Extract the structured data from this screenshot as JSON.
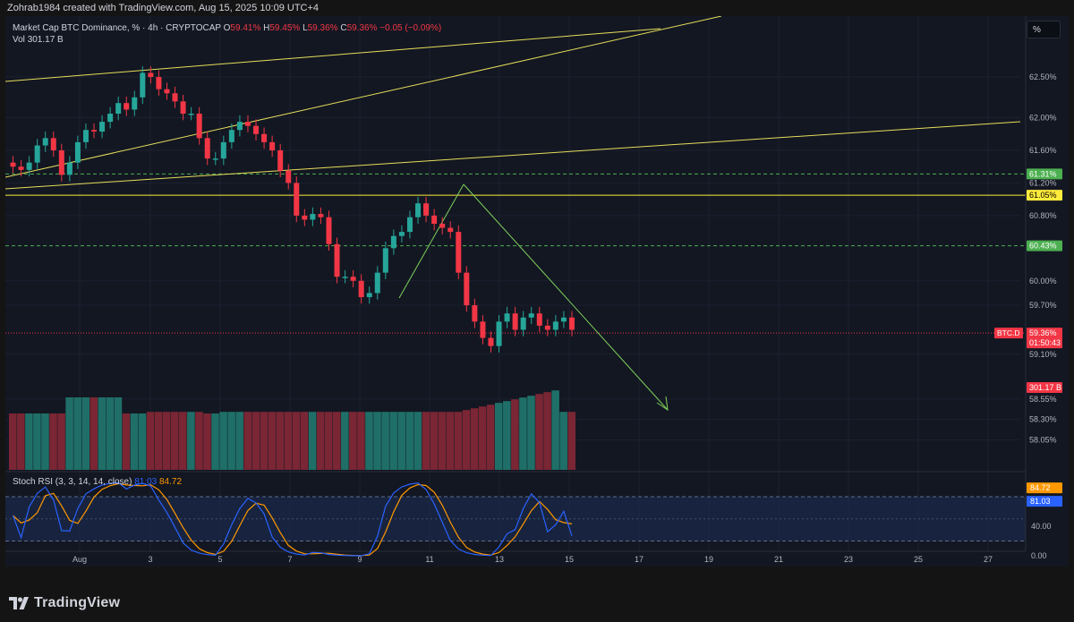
{
  "header": {
    "credit": "Zohrab1984 created with TradingView.com, Aug 15, 2025 10:09 UTC+4"
  },
  "legend": {
    "symbol": "Market Cap BTC Dominance, % · 4h · CRYPTOCAP",
    "open_label": "O",
    "open": "59.41%",
    "high_label": "H",
    "high": "59.45%",
    "low_label": "L",
    "low": "59.36%",
    "close_label": "C",
    "close": "59.36%",
    "change": "−0.05 (−0.09%)",
    "vol_label": "Vol",
    "vol_value": "301.17 B"
  },
  "scale_button": "%",
  "rsi": {
    "label": "Stoch RSI (3, 3, 14, 14, close)",
    "k": "81.03",
    "d": "84.72",
    "k_color": "#2962ff",
    "d_color": "#ff9800"
  },
  "chart_data": {
    "type": "candlestick",
    "price_axis_ticks": [
      "62.50%",
      "62.00%",
      "61.60%",
      "61.20%",
      "60.80%",
      "60.00%",
      "59.70%",
      "59.10%",
      "58.55%",
      "58.30%",
      "58.05%"
    ],
    "time_axis_ticks": [
      "Aug",
      "3",
      "5",
      "7",
      "9",
      "11",
      "13",
      "15",
      "17",
      "19",
      "21",
      "23",
      "25",
      "27"
    ],
    "price_labels": [
      {
        "text": "61.31%",
        "price": 61.31,
        "bg": "#4caf50",
        "fg": "#ffffff"
      },
      {
        "text": "61.05%",
        "price": 61.05,
        "bg": "#ffeb3b",
        "fg": "#000000"
      },
      {
        "text": "60.43%",
        "price": 60.43,
        "bg": "#4caf50",
        "fg": "#ffffff"
      },
      {
        "text": "59.36%",
        "price": 59.36,
        "bg": "#f23645",
        "fg": "#ffffff"
      },
      {
        "text": "01:50:43",
        "price": 59.25,
        "bg": "#f23645",
        "fg": "#ffffff"
      },
      {
        "text": "301.17 B",
        "price": 58.9,
        "bg": "#f23645",
        "fg": "#ffffff"
      }
    ],
    "symbol_tag": "BTC.D",
    "dashed_levels": [
      61.31,
      60.43
    ],
    "horizontal_lines": [
      {
        "price": 61.05,
        "color": "#ffeb3b"
      }
    ],
    "close_price": 59.36,
    "rsi_axis_ticks": [
      "40.00",
      "0.00"
    ],
    "rsi_levels": [
      80,
      20
    ],
    "rsi_labels": [
      {
        "text": "84.72",
        "value": 84.72,
        "bg": "#ff9800"
      },
      {
        "text": "81.03",
        "value": 81.03,
        "bg": "#2962ff"
      }
    ],
    "candles_close": [
      61.4,
      61.36,
      61.45,
      61.66,
      61.75,
      61.6,
      61.3,
      61.45,
      61.7,
      61.85,
      61.83,
      61.95,
      62.05,
      62.18,
      62.1,
      62.25,
      62.55,
      62.5,
      62.35,
      62.3,
      62.2,
      62.05,
      62.05,
      61.75,
      61.5,
      61.5,
      61.7,
      61.85,
      61.95,
      61.9,
      61.8,
      61.7,
      61.6,
      61.35,
      61.2,
      60.8,
      60.75,
      60.82,
      60.78,
      60.45,
      60.05,
      60.05,
      60.0,
      59.8,
      59.85,
      60.1,
      60.4,
      60.55,
      60.6,
      60.78,
      60.95,
      60.8,
      60.7,
      60.65,
      60.6,
      60.1,
      59.7,
      59.5,
      59.3,
      59.2,
      59.5,
      59.6,
      59.4,
      59.55,
      59.6,
      59.45,
      59.4,
      59.5,
      59.55,
      59.4
    ],
    "volume_fraction": [
      0.7,
      0.7,
      0.7,
      0.7,
      0.7,
      0.7,
      0.7,
      0.7,
      0.7,
      0.7,
      0.7,
      0.7,
      0.7,
      0.7,
      0.7,
      0.7,
      0.7,
      0.72,
      0.72,
      0.72,
      0.72,
      0.72,
      0.72,
      0.72,
      0.7,
      0.7,
      0.72,
      0.72,
      0.72,
      0.72,
      0.72,
      0.72,
      0.72,
      0.72,
      0.72,
      0.72,
      0.72,
      0.72,
      0.72,
      0.72,
      0.72,
      0.72,
      0.72,
      0.72,
      0.72,
      0.72,
      0.72,
      0.72,
      0.72,
      0.72,
      0.72,
      0.72,
      0.72,
      0.72,
      0.72,
      0.72,
      0.72,
      0.72,
      0.72,
      0.72,
      0.72,
      0.72,
      0.72,
      0.72,
      0.72,
      0.72,
      0.72,
      0.72,
      0.72,
      0.72
    ]
  }
}
